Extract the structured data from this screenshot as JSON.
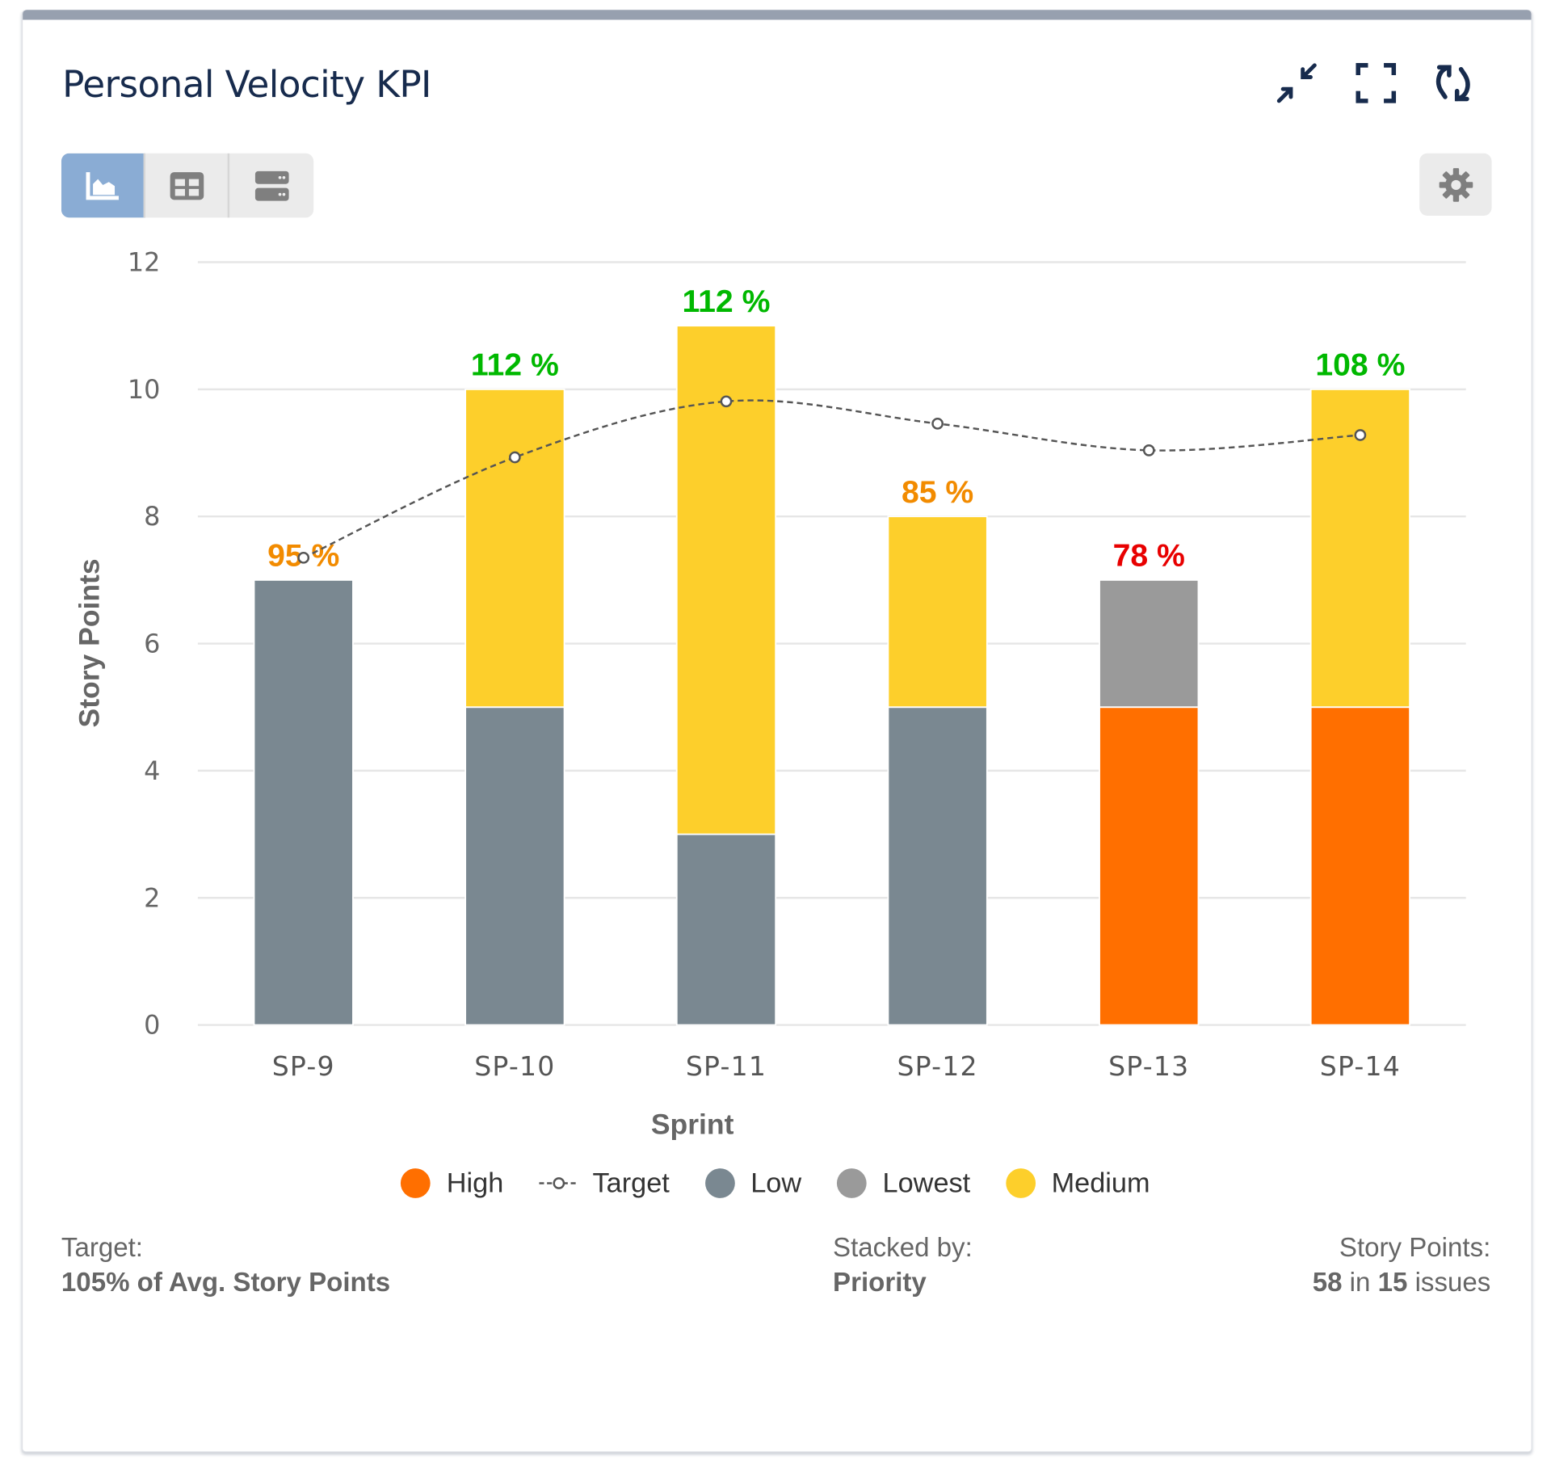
{
  "header": {
    "title": "Personal Velocity KPI",
    "icons": [
      "collapse-icon",
      "fullscreen-icon",
      "refresh-icon"
    ]
  },
  "view_toggle": {
    "items": [
      {
        "icon": "chart-icon",
        "active": true
      },
      {
        "icon": "table-icon",
        "active": false
      },
      {
        "icon": "list-icon",
        "active": false
      }
    ]
  },
  "settings": {
    "icon": "gear-icon"
  },
  "chart_data": {
    "type": "bar",
    "stacked": true,
    "categories": [
      "SP-9",
      "SP-10",
      "SP-11",
      "SP-12",
      "SP-13",
      "SP-14"
    ],
    "xlabel": "Sprint",
    "ylabel": "Story Points",
    "ylim": [
      0,
      12
    ],
    "yticks": [
      "0",
      "2",
      "4",
      "6",
      "8",
      "10",
      "12"
    ],
    "grid": true,
    "legend_placement": "bottom",
    "series": [
      {
        "name": "High",
        "color": "#ff6f00",
        "values": [
          0,
          0,
          0,
          0,
          5,
          5
        ]
      },
      {
        "name": "Low",
        "color": "#7a8891",
        "values": [
          7,
          5,
          3,
          5,
          0,
          0
        ]
      },
      {
        "name": "Lowest",
        "color": "#9a9a9a",
        "values": [
          0,
          0,
          0,
          0,
          2,
          0
        ]
      },
      {
        "name": "Medium",
        "color": "#fdcf2b",
        "values": [
          0,
          5,
          8,
          3,
          0,
          5
        ]
      }
    ],
    "stack_order": [
      "Low",
      "High",
      "Lowest",
      "Medium"
    ],
    "target": {
      "name": "Target",
      "color": "#555555",
      "values": [
        7.35,
        8.93,
        9.81,
        9.46,
        9.04,
        9.28
      ]
    },
    "data_labels": [
      {
        "text": "95 %",
        "color": "#f28b00"
      },
      {
        "text": "112 %",
        "color": "#00b800"
      },
      {
        "text": "112 %",
        "color": "#00b800"
      },
      {
        "text": "85 %",
        "color": "#f28b00"
      },
      {
        "text": "78 %",
        "color": "#e80000"
      },
      {
        "text": "108 %",
        "color": "#00b800"
      }
    ],
    "legend": [
      "High",
      "Target",
      "Low",
      "Lowest",
      "Medium"
    ]
  },
  "footer": {
    "target_label": "Target:",
    "target_value": "105% of Avg. Story Points",
    "stacked_label": "Stacked by:",
    "stacked_value": "Priority",
    "points_label": "Story Points:",
    "points_total": "58",
    "points_in": " in ",
    "points_issues": "15",
    "points_suffix": " issues"
  }
}
